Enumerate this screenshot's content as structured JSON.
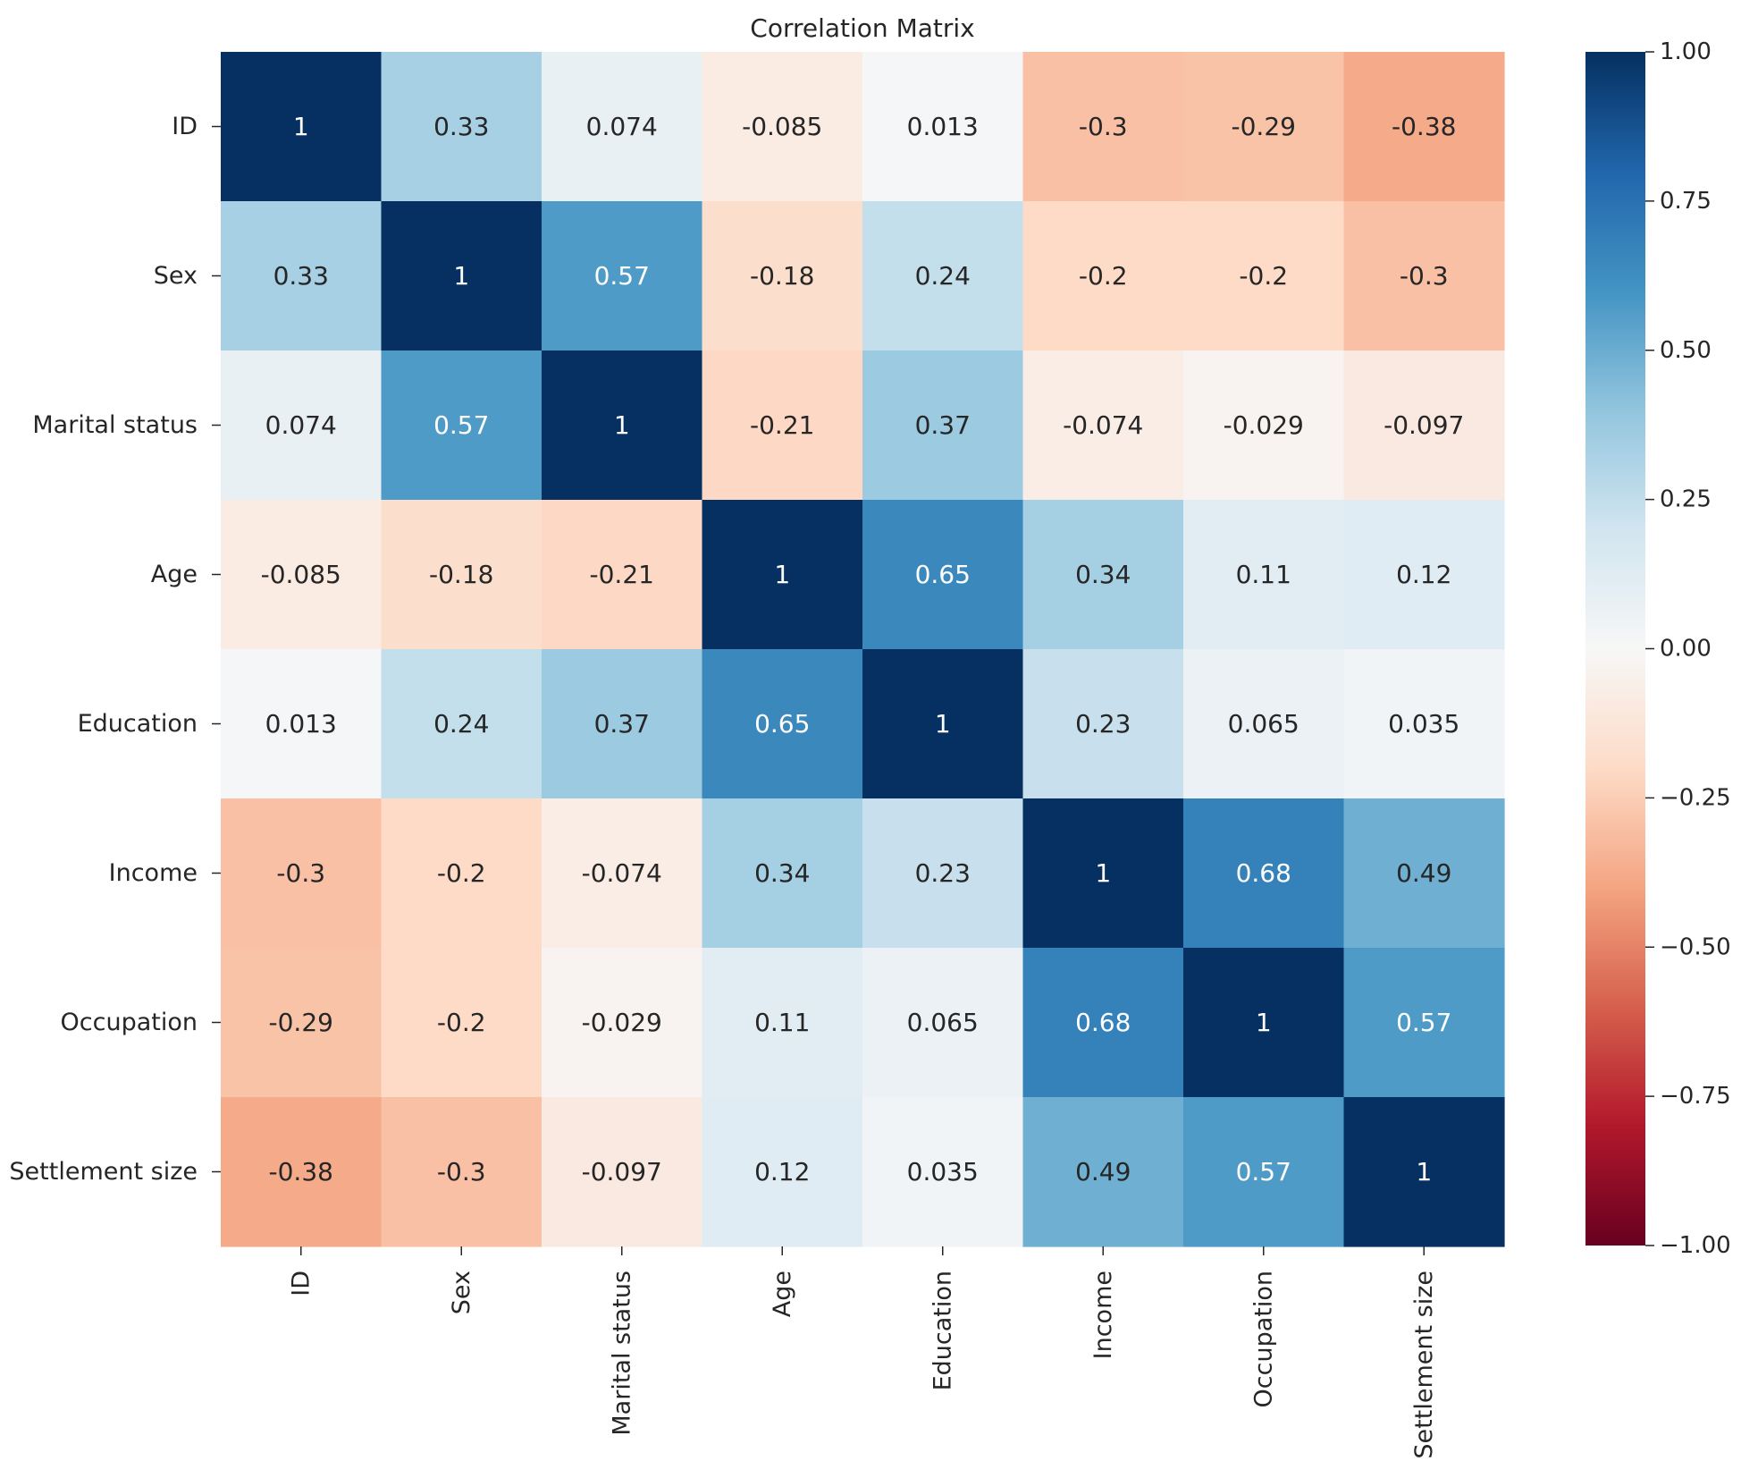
{
  "chart_data": {
    "type": "heatmap",
    "title": "Correlation Matrix",
    "labels": [
      "ID",
      "Sex",
      "Marital status",
      "Age",
      "Education",
      "Income",
      "Occupation",
      "Settlement size"
    ],
    "values": [
      [
        1,
        0.33,
        0.074,
        -0.085,
        0.013,
        -0.3,
        -0.29,
        -0.38
      ],
      [
        0.33,
        1,
        0.57,
        -0.18,
        0.24,
        -0.2,
        -0.2,
        -0.3
      ],
      [
        0.074,
        0.57,
        1,
        -0.21,
        0.37,
        -0.074,
        -0.029,
        -0.097
      ],
      [
        -0.085,
        -0.18,
        -0.21,
        1,
        0.65,
        0.34,
        0.11,
        0.12
      ],
      [
        0.013,
        0.24,
        0.37,
        0.65,
        1,
        0.23,
        0.065,
        0.035
      ],
      [
        -0.3,
        -0.2,
        -0.074,
        0.34,
        0.23,
        1,
        0.68,
        0.49
      ],
      [
        -0.29,
        -0.2,
        -0.029,
        0.11,
        0.065,
        0.68,
        1,
        0.57
      ],
      [
        -0.38,
        -0.3,
        -0.097,
        0.12,
        0.035,
        0.49,
        0.57,
        1
      ]
    ],
    "annotations": [
      [
        "1",
        "0.33",
        "0.074",
        "-0.085",
        "0.013",
        "-0.3",
        "-0.29",
        "-0.38"
      ],
      [
        "0.33",
        "1",
        "0.57",
        "-0.18",
        "0.24",
        "-0.2",
        "-0.2",
        "-0.3"
      ],
      [
        "0.074",
        "0.57",
        "1",
        "-0.21",
        "0.37",
        "-0.074",
        "-0.029",
        "-0.097"
      ],
      [
        "-0.085",
        "-0.18",
        "-0.21",
        "1",
        "0.65",
        "0.34",
        "0.11",
        "0.12"
      ],
      [
        "0.013",
        "0.24",
        "0.37",
        "0.65",
        "1",
        "0.23",
        "0.065",
        "0.035"
      ],
      [
        "-0.3",
        "-0.2",
        "-0.074",
        "0.34",
        "0.23",
        "1",
        "0.68",
        "0.49"
      ],
      [
        "-0.29",
        "-0.2",
        "-0.029",
        "0.11",
        "0.065",
        "0.68",
        "1",
        "0.57"
      ],
      [
        "-0.38",
        "-0.3",
        "-0.097",
        "0.12",
        "0.035",
        "0.49",
        "0.57",
        "1"
      ]
    ],
    "colormap": "RdBu",
    "vmin": -1,
    "vmax": 1,
    "colorbar_ticks": [
      1.0,
      0.75,
      0.5,
      0.25,
      0.0,
      -0.25,
      -0.5,
      -0.75,
      -1.0
    ],
    "colorbar_tick_labels": [
      "1.00",
      "0.75",
      "0.50",
      "0.25",
      "0.00",
      "−0.25",
      "−0.50",
      "−0.75",
      "−1.00"
    ],
    "colormap_stops": [
      "#67001f",
      "#b2182b",
      "#d6604d",
      "#f4a582",
      "#fddbc7",
      "#f7f7f7",
      "#d1e5f0",
      "#92c5de",
      "#4393c3",
      "#2166ac",
      "#053061"
    ],
    "text_colors": {
      "light": "#ffffff",
      "dark": "#262626"
    },
    "colorbar": true,
    "grid": false,
    "x_tick_rotation": "vertical"
  }
}
